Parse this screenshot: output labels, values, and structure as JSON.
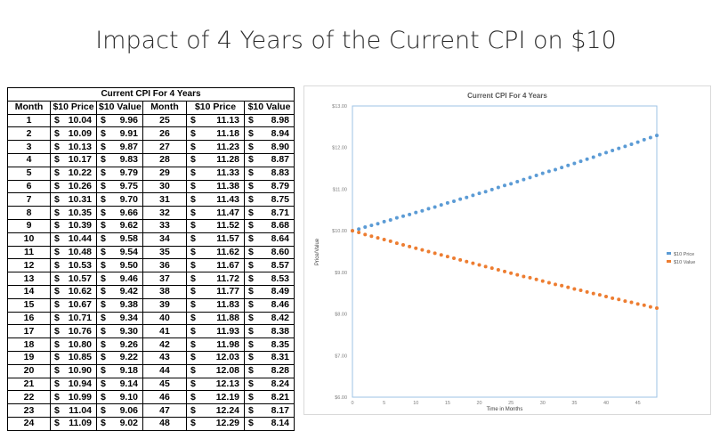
{
  "page": {
    "title": "Impact of 4 Years of the Current CPI on $10"
  },
  "table": {
    "caption": "Current CPI For 4 Years",
    "headers": [
      "Month",
      "$10 Price",
      "$10 Value",
      "Month",
      "$10 Price",
      "$10 Value"
    ],
    "currency_symbol": "$",
    "rows": [
      [
        "1",
        "10.04",
        "9.96",
        "25",
        "11.13",
        "8.98"
      ],
      [
        "2",
        "10.09",
        "9.91",
        "26",
        "11.18",
        "8.94"
      ],
      [
        "3",
        "10.13",
        "9.87",
        "27",
        "11.23",
        "8.90"
      ],
      [
        "4",
        "10.17",
        "9.83",
        "28",
        "11.28",
        "8.87"
      ],
      [
        "5",
        "10.22",
        "9.79",
        "29",
        "11.33",
        "8.83"
      ],
      [
        "6",
        "10.26",
        "9.75",
        "30",
        "11.38",
        "8.79"
      ],
      [
        "7",
        "10.31",
        "9.70",
        "31",
        "11.43",
        "8.75"
      ],
      [
        "8",
        "10.35",
        "9.66",
        "32",
        "11.47",
        "8.71"
      ],
      [
        "9",
        "10.39",
        "9.62",
        "33",
        "11.52",
        "8.68"
      ],
      [
        "10",
        "10.44",
        "9.58",
        "34",
        "11.57",
        "8.64"
      ],
      [
        "11",
        "10.48",
        "9.54",
        "35",
        "11.62",
        "8.60"
      ],
      [
        "12",
        "10.53",
        "9.50",
        "36",
        "11.67",
        "8.57"
      ],
      [
        "13",
        "10.57",
        "9.46",
        "37",
        "11.72",
        "8.53"
      ],
      [
        "14",
        "10.62",
        "9.42",
        "38",
        "11.77",
        "8.49"
      ],
      [
        "15",
        "10.67",
        "9.38",
        "39",
        "11.83",
        "8.46"
      ],
      [
        "16",
        "10.71",
        "9.34",
        "40",
        "11.88",
        "8.42"
      ],
      [
        "17",
        "10.76",
        "9.30",
        "41",
        "11.93",
        "8.38"
      ],
      [
        "18",
        "10.80",
        "9.26",
        "42",
        "11.98",
        "8.35"
      ],
      [
        "19",
        "10.85",
        "9.22",
        "43",
        "12.03",
        "8.31"
      ],
      [
        "20",
        "10.90",
        "9.18",
        "44",
        "12.08",
        "8.28"
      ],
      [
        "21",
        "10.94",
        "9.14",
        "45",
        "12.13",
        "8.24"
      ],
      [
        "22",
        "10.99",
        "9.10",
        "46",
        "12.19",
        "8.21"
      ],
      [
        "23",
        "11.04",
        "9.06",
        "47",
        "12.24",
        "8.17"
      ],
      [
        "24",
        "11.09",
        "9.02",
        "48",
        "12.29",
        "8.14"
      ]
    ]
  },
  "chart_data": {
    "type": "scatter",
    "title": "Current CPI For 4 Years",
    "xlabel": "Time in Months",
    "ylabel": "Price/Value",
    "xlim": [
      0,
      48
    ],
    "ylim": [
      6,
      13
    ],
    "x_ticks": [
      0,
      5,
      10,
      15,
      20,
      25,
      30,
      35,
      40,
      45
    ],
    "y_ticks": [
      6,
      7,
      8,
      9,
      10,
      11,
      12,
      13
    ],
    "y_tick_labels": [
      "$6.00",
      "$7.00",
      "$8.00",
      "$9.00",
      "$10.00",
      "$11.00",
      "$12.00",
      "$13.00"
    ],
    "grid": false,
    "legend_position": "right",
    "x": [
      0,
      1,
      2,
      3,
      4,
      5,
      6,
      7,
      8,
      9,
      10,
      11,
      12,
      13,
      14,
      15,
      16,
      17,
      18,
      19,
      20,
      21,
      22,
      23,
      24,
      25,
      26,
      27,
      28,
      29,
      30,
      31,
      32,
      33,
      34,
      35,
      36,
      37,
      38,
      39,
      40,
      41,
      42,
      43,
      44,
      45,
      46,
      47,
      48
    ],
    "series": [
      {
        "name": "$10 Price",
        "color": "#5b9bd5",
        "values": [
          10.0,
          10.04,
          10.09,
          10.13,
          10.17,
          10.22,
          10.26,
          10.31,
          10.35,
          10.39,
          10.44,
          10.48,
          10.53,
          10.57,
          10.62,
          10.67,
          10.71,
          10.76,
          10.8,
          10.85,
          10.9,
          10.94,
          10.99,
          11.04,
          11.09,
          11.13,
          11.18,
          11.23,
          11.28,
          11.33,
          11.38,
          11.43,
          11.47,
          11.52,
          11.57,
          11.62,
          11.67,
          11.72,
          11.77,
          11.83,
          11.88,
          11.93,
          11.98,
          12.03,
          12.08,
          12.13,
          12.19,
          12.24,
          12.29
        ]
      },
      {
        "name": "$10 Value",
        "color": "#ed7d31",
        "values": [
          10.0,
          9.96,
          9.91,
          9.87,
          9.83,
          9.79,
          9.75,
          9.7,
          9.66,
          9.62,
          9.58,
          9.54,
          9.5,
          9.46,
          9.42,
          9.38,
          9.34,
          9.3,
          9.26,
          9.22,
          9.18,
          9.14,
          9.1,
          9.06,
          9.02,
          8.98,
          8.94,
          8.9,
          8.87,
          8.83,
          8.79,
          8.75,
          8.71,
          8.68,
          8.64,
          8.6,
          8.57,
          8.53,
          8.49,
          8.46,
          8.42,
          8.38,
          8.35,
          8.31,
          8.28,
          8.24,
          8.21,
          8.17,
          8.14
        ]
      }
    ]
  }
}
